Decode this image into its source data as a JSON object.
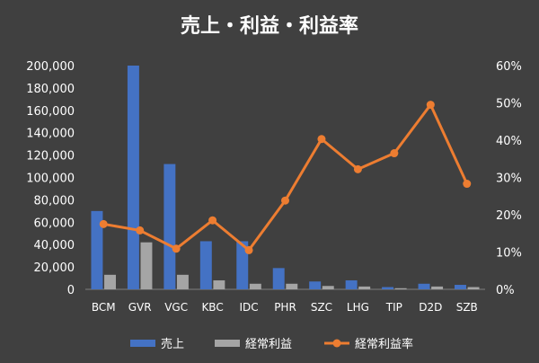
{
  "chart_data": {
    "type": "bar",
    "title": "売上・利益・利益率",
    "categories": [
      "BCM",
      "GVR",
      "VGC",
      "KBC",
      "IDC",
      "PHR",
      "SZC",
      "LHG",
      "TIP",
      "D2D",
      "SZB"
    ],
    "series": [
      {
        "name": "売上",
        "type": "bar",
        "axis": "left",
        "color": "#4472C4",
        "values": [
          70000,
          200000,
          112000,
          43000,
          43000,
          19000,
          7000,
          8000,
          2000,
          5000,
          4000
        ]
      },
      {
        "name": "経常利益",
        "type": "bar",
        "axis": "left",
        "color": "#A5A5A5",
        "values": [
          13000,
          42000,
          13000,
          8000,
          5000,
          5000,
          3000,
          2500,
          1000,
          2500,
          2000
        ]
      },
      {
        "name": "経常利益率",
        "type": "line",
        "axis": "right",
        "color": "#ED7D31",
        "values": [
          0.175,
          0.158,
          0.109,
          0.185,
          0.105,
          0.238,
          0.403,
          0.322,
          0.365,
          0.495,
          0.283
        ]
      }
    ],
    "y_left": {
      "min": 0,
      "max": 200000,
      "step": 20000,
      "tick_labels": [
        "0",
        "20,000",
        "40,000",
        "60,000",
        "80,000",
        "100,000",
        "120,000",
        "140,000",
        "160,000",
        "180,000",
        "200,000"
      ]
    },
    "y_right": {
      "min": 0,
      "max": 0.6,
      "step": 0.1,
      "tick_labels": [
        "0%",
        "10%",
        "20%",
        "30%",
        "40%",
        "50%",
        "60%"
      ]
    },
    "grid": false,
    "legend_position": "bottom",
    "background_color": "#404040",
    "text_color": "#FFFFFF"
  }
}
